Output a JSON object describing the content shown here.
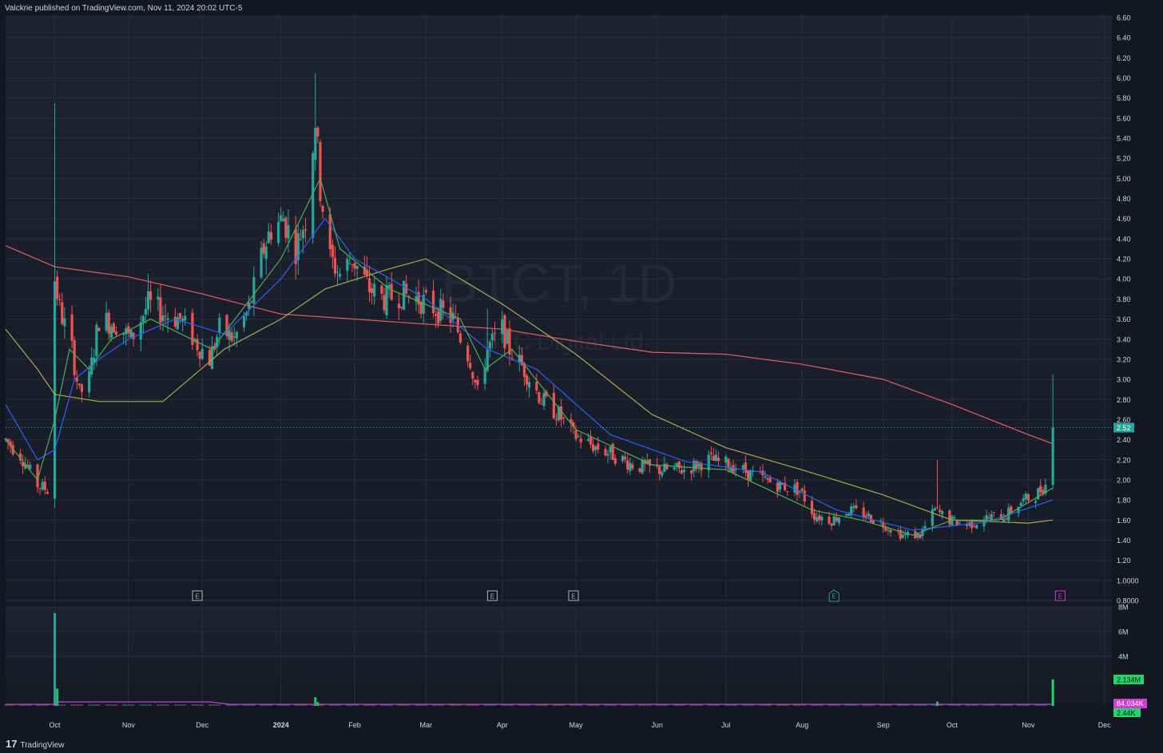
{
  "header": {
    "publisher_line": "Valckrie published on TradingView.com, Nov 11, 2024 20:02 UTC-5"
  },
  "footer": {
    "brand": "TradingView",
    "logo_glyph": "17"
  },
  "watermark": {
    "symbol": "BTCT, 1D",
    "name": "BTC Digital Ltd"
  },
  "colors": {
    "up": "#26a69a",
    "down": "#ef5350",
    "ma_blue": "#2962ff",
    "ma_green": "#4caf50",
    "ma_gold": "#b5a642",
    "ma_red": "#e06060",
    "volume_ma": "#c048e0",
    "last_price_badge": "#26a69a",
    "volume_badge": "#22d66a",
    "volume_ma_badge": "#d13cd6"
  },
  "earnings_markers": [
    {
      "date": "2023-11-29",
      "label": "E",
      "style": "past"
    },
    {
      "date": "2024-03-28",
      "label": "E",
      "style": "past"
    },
    {
      "date": "2024-04-30",
      "label": "E",
      "style": "past"
    },
    {
      "date": "2024-08-14",
      "label": "E",
      "style": "reported-up"
    },
    {
      "date": "2024-11-14",
      "label": "E",
      "style": "upcoming"
    }
  ],
  "price_axis_labels": [
    "6.60",
    "6.40",
    "6.20",
    "6.00",
    "5.80",
    "5.60",
    "5.40",
    "5.20",
    "5.00",
    "4.80",
    "4.60",
    "4.40",
    "4.20",
    "4.00",
    "3.80",
    "3.60",
    "3.40",
    "3.20",
    "3.00",
    "2.80",
    "2.60",
    "2.40",
    "2.20",
    "2.00",
    "1.80",
    "1.60",
    "1.40",
    "1.20",
    "1.0000",
    "0.8000"
  ],
  "volume_axis_labels": [
    "8M",
    "6M",
    "4M"
  ],
  "last_price": {
    "value": "2.52"
  },
  "volume_badges": {
    "volume": "2.134M",
    "volume_ma": "84.034K",
    "other": "2.44K"
  },
  "chart_data": {
    "type": "candlestick",
    "timeframe": "1D",
    "symbol": "BTCT",
    "x_range": [
      "2023-09-12",
      "2024-12-05"
    ],
    "ylim": [
      0.8,
      6.6
    ],
    "volume_ylim": [
      0,
      8000000
    ],
    "x_tick_labels": [
      {
        "label": "Oct",
        "date": "2023-10-02"
      },
      {
        "label": "Nov",
        "date": "2023-11-01"
      },
      {
        "label": "Dec",
        "date": "2023-12-01"
      },
      {
        "label": "2024",
        "date": "2024-01-02"
      },
      {
        "label": "Feb",
        "date": "2024-02-01"
      },
      {
        "label": "Mar",
        "date": "2024-03-01"
      },
      {
        "label": "Apr",
        "date": "2024-04-01"
      },
      {
        "label": "May",
        "date": "2024-05-01"
      },
      {
        "label": "Jun",
        "date": "2024-06-03"
      },
      {
        "label": "Jul",
        "date": "2024-07-01"
      },
      {
        "label": "Aug",
        "date": "2024-08-01"
      },
      {
        "label": "Sep",
        "date": "2024-09-03"
      },
      {
        "label": "Oct",
        "date": "2024-10-01"
      },
      {
        "label": "Nov",
        "date": "2024-11-01"
      },
      {
        "label": "Dec",
        "date": "2024-12-02"
      }
    ],
    "price_path": [
      [
        "2023-09-12",
        2.4
      ],
      [
        "2023-09-18",
        2.25
      ],
      [
        "2023-09-25",
        1.95
      ],
      [
        "2023-09-29",
        1.9
      ],
      [
        "2023-10-02",
        4.0
      ],
      [
        "2023-10-04",
        3.7
      ],
      [
        "2023-10-09",
        3.3
      ],
      [
        "2023-10-12",
        2.85
      ],
      [
        "2023-10-16",
        3.0
      ],
      [
        "2023-10-20",
        3.6
      ],
      [
        "2023-10-27",
        3.55
      ],
      [
        "2023-11-02",
        3.4
      ],
      [
        "2023-11-09",
        3.75
      ],
      [
        "2023-11-16",
        3.65
      ],
      [
        "2023-11-22",
        3.6
      ],
      [
        "2023-11-29",
        3.35
      ],
      [
        "2023-12-04",
        3.2
      ],
      [
        "2023-12-08",
        3.5
      ],
      [
        "2023-12-14",
        3.4
      ],
      [
        "2023-12-20",
        3.7
      ],
      [
        "2023-12-26",
        4.3
      ],
      [
        "2023-12-29",
        4.5
      ],
      [
        "2024-01-03",
        4.6
      ],
      [
        "2024-01-08",
        4.3
      ],
      [
        "2024-01-12",
        4.6
      ],
      [
        "2024-01-16",
        5.6
      ],
      [
        "2024-01-18",
        4.9
      ],
      [
        "2024-01-22",
        4.2
      ],
      [
        "2024-01-26",
        4.05
      ],
      [
        "2024-01-31",
        4.2
      ],
      [
        "2024-02-07",
        3.9
      ],
      [
        "2024-02-13",
        3.8
      ],
      [
        "2024-02-20",
        3.85
      ],
      [
        "2024-02-27",
        3.8
      ],
      [
        "2024-03-05",
        3.7
      ],
      [
        "2024-03-12",
        3.6
      ],
      [
        "2024-03-19",
        3.2
      ],
      [
        "2024-03-22",
        2.85
      ],
      [
        "2024-03-26",
        3.3
      ],
      [
        "2024-04-01",
        3.5
      ],
      [
        "2024-04-04",
        3.3
      ],
      [
        "2024-04-10",
        3.1
      ],
      [
        "2024-04-17",
        2.8
      ],
      [
        "2024-04-24",
        2.65
      ],
      [
        "2024-04-30",
        2.45
      ],
      [
        "2024-05-07",
        2.35
      ],
      [
        "2024-05-16",
        2.25
      ],
      [
        "2024-05-24",
        2.15
      ],
      [
        "2024-06-03",
        2.1
      ],
      [
        "2024-06-14",
        2.1
      ],
      [
        "2024-06-24",
        2.2
      ],
      [
        "2024-07-03",
        2.15
      ],
      [
        "2024-07-12",
        2.05
      ],
      [
        "2024-07-22",
        1.95
      ],
      [
        "2024-07-31",
        1.9
      ],
      [
        "2024-08-06",
        1.65
      ],
      [
        "2024-08-13",
        1.6
      ],
      [
        "2024-08-20",
        1.7
      ],
      [
        "2024-08-27",
        1.65
      ],
      [
        "2024-09-04",
        1.55
      ],
      [
        "2024-09-11",
        1.45
      ],
      [
        "2024-09-18",
        1.45
      ],
      [
        "2024-09-24",
        1.7
      ],
      [
        "2024-09-30",
        1.6
      ],
      [
        "2024-10-07",
        1.55
      ],
      [
        "2024-10-15",
        1.62
      ],
      [
        "2024-10-23",
        1.65
      ],
      [
        "2024-10-29",
        1.78
      ],
      [
        "2024-11-04",
        1.85
      ],
      [
        "2024-11-08",
        1.95
      ],
      [
        "2024-11-11",
        2.52
      ]
    ],
    "spikes": [
      {
        "date": "2023-10-02",
        "high": 5.75
      },
      {
        "date": "2023-11-09",
        "high": 4.05
      },
      {
        "date": "2024-01-16",
        "high": 6.05
      },
      {
        "date": "2024-03-26",
        "high": 3.7
      },
      {
        "date": "2024-09-25",
        "high": 2.2
      },
      {
        "date": "2024-11-11",
        "high": 3.05
      }
    ],
    "moving_averages": [
      {
        "color_key": "ma_red",
        "values": [
          [
            "2023-09-12",
            4.33
          ],
          [
            "2023-10-02",
            4.12
          ],
          [
            "2023-11-01",
            4.02
          ],
          [
            "2023-12-01",
            3.85
          ],
          [
            "2024-01-02",
            3.65
          ],
          [
            "2024-02-01",
            3.6
          ],
          [
            "2024-03-01",
            3.55
          ],
          [
            "2024-04-01",
            3.5
          ],
          [
            "2024-05-01",
            3.38
          ],
          [
            "2024-06-01",
            3.27
          ],
          [
            "2024-07-01",
            3.25
          ],
          [
            "2024-08-01",
            3.15
          ],
          [
            "2024-09-03",
            3.0
          ],
          [
            "2024-10-01",
            2.75
          ],
          [
            "2024-11-01",
            2.45
          ],
          [
            "2024-11-11",
            2.36
          ]
        ]
      },
      {
        "color_key": "ma_gold",
        "values": [
          [
            "2023-09-12",
            3.5
          ],
          [
            "2023-09-25",
            3.1
          ],
          [
            "2023-10-02",
            2.85
          ],
          [
            "2023-10-20",
            2.78
          ],
          [
            "2023-11-15",
            2.78
          ],
          [
            "2023-12-10",
            3.3
          ],
          [
            "2024-01-02",
            3.6
          ],
          [
            "2024-01-20",
            3.9
          ],
          [
            "2024-02-15",
            4.1
          ],
          [
            "2024-03-01",
            4.2
          ],
          [
            "2024-03-15",
            4.0
          ],
          [
            "2024-04-01",
            3.75
          ],
          [
            "2024-05-01",
            3.25
          ],
          [
            "2024-06-01",
            2.65
          ],
          [
            "2024-07-01",
            2.32
          ],
          [
            "2024-08-01",
            2.1
          ],
          [
            "2024-09-03",
            1.85
          ],
          [
            "2024-10-01",
            1.6
          ],
          [
            "2024-11-01",
            1.57
          ],
          [
            "2024-11-11",
            1.6
          ]
        ]
      },
      {
        "color_key": "ma_blue",
        "values": [
          [
            "2023-09-12",
            2.75
          ],
          [
            "2023-09-25",
            2.2
          ],
          [
            "2023-10-02",
            2.3
          ],
          [
            "2023-10-10",
            3.0
          ],
          [
            "2023-10-20",
            3.2
          ],
          [
            "2023-11-01",
            3.4
          ],
          [
            "2023-11-20",
            3.6
          ],
          [
            "2023-12-10",
            3.45
          ],
          [
            "2024-01-02",
            4.0
          ],
          [
            "2024-01-20",
            4.6
          ],
          [
            "2024-02-01",
            4.2
          ],
          [
            "2024-03-01",
            3.8
          ],
          [
            "2024-03-26",
            3.3
          ],
          [
            "2024-04-15",
            3.1
          ],
          [
            "2024-05-15",
            2.45
          ],
          [
            "2024-06-15",
            2.18
          ],
          [
            "2024-07-15",
            2.08
          ],
          [
            "2024-08-15",
            1.7
          ],
          [
            "2024-09-15",
            1.5
          ],
          [
            "2024-10-15",
            1.58
          ],
          [
            "2024-11-11",
            1.8
          ]
        ]
      },
      {
        "color_key": "ma_green",
        "values": [
          [
            "2023-09-12",
            2.4
          ],
          [
            "2023-09-25",
            2.0
          ],
          [
            "2023-10-02",
            2.6
          ],
          [
            "2023-10-08",
            3.3
          ],
          [
            "2023-10-16",
            3.1
          ],
          [
            "2023-10-25",
            3.4
          ],
          [
            "2023-11-10",
            3.6
          ],
          [
            "2023-12-05",
            3.3
          ],
          [
            "2024-01-02",
            4.2
          ],
          [
            "2024-01-18",
            5.0
          ],
          [
            "2024-01-26",
            4.3
          ],
          [
            "2024-02-15",
            3.9
          ],
          [
            "2024-03-15",
            3.6
          ],
          [
            "2024-03-25",
            3.1
          ],
          [
            "2024-04-05",
            3.3
          ],
          [
            "2024-05-01",
            2.5
          ],
          [
            "2024-06-01",
            2.15
          ],
          [
            "2024-07-01",
            2.1
          ],
          [
            "2024-08-05",
            1.7
          ],
          [
            "2024-08-25",
            1.6
          ],
          [
            "2024-09-15",
            1.45
          ],
          [
            "2024-10-01",
            1.6
          ],
          [
            "2024-10-20",
            1.6
          ],
          [
            "2024-11-11",
            1.92
          ]
        ]
      }
    ],
    "volume_spikes": [
      {
        "date": "2023-10-02",
        "volume": 7500000
      },
      {
        "date": "2023-10-03",
        "volume": 1400000
      },
      {
        "date": "2024-01-16",
        "volume": 700000
      },
      {
        "date": "2024-01-17",
        "volume": 300000
      },
      {
        "date": "2024-09-25",
        "volume": 350000
      },
      {
        "date": "2024-11-11",
        "volume": 2134000
      }
    ]
  }
}
